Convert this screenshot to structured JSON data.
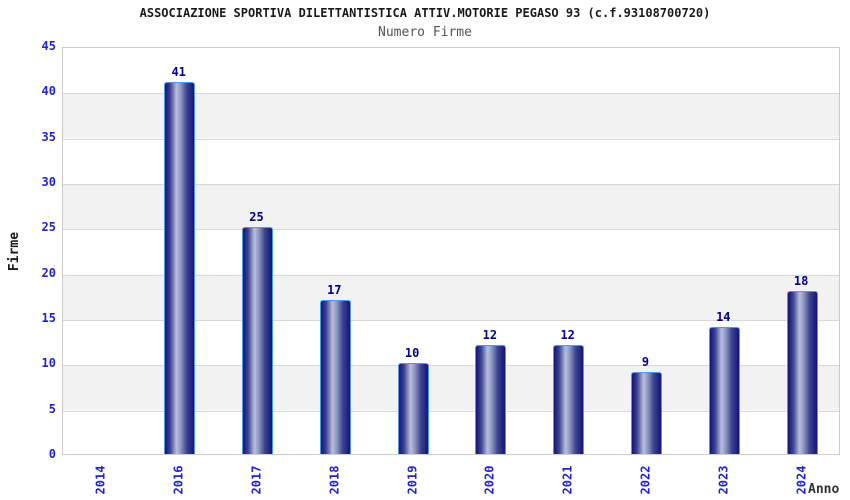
{
  "header": {
    "title": "ASSOCIAZIONE SPORTIVA DILETTANTISTICA ATTIV.MOTORIE PEGASO 93 (c.f.93108700720)",
    "subtitle": "Numero Firme"
  },
  "chart_data": {
    "type": "bar",
    "title": "ASSOCIAZIONE SPORTIVA DILETTANTISTICA ATTIV.MOTORIE PEGASO 93 (c.f.93108700720)",
    "subtitle": "Numero Firme",
    "categories": [
      "2014",
      "2016",
      "2017",
      "2018",
      "2019",
      "2020",
      "2021",
      "2022",
      "2023",
      "2024"
    ],
    "values": [
      null,
      41,
      25,
      17,
      10,
      12,
      12,
      9,
      14,
      18
    ],
    "xlabel": "Anno",
    "ylabel": "Firme",
    "ylim": [
      0,
      45
    ],
    "yticks": [
      0,
      5,
      10,
      15,
      20,
      25,
      30,
      35,
      40,
      45
    ],
    "grid": true,
    "legend_position": "none",
    "band_fill": "alternating horizontal white/gray"
  },
  "colors": {
    "title_text": "#1a1a1a",
    "subtitle_text": "#555555",
    "axis_tick_text": "#2222cc",
    "bar_value_text": "#00008b",
    "bar_dark": "#14147a",
    "bar_highlight": "#b9c0de",
    "bar_border": "#4d9ae8",
    "band_gray": "#f2f2f2",
    "grid_line": "#d8d8d8",
    "plot_frame": "#cccccc",
    "background": "#ffffff"
  }
}
